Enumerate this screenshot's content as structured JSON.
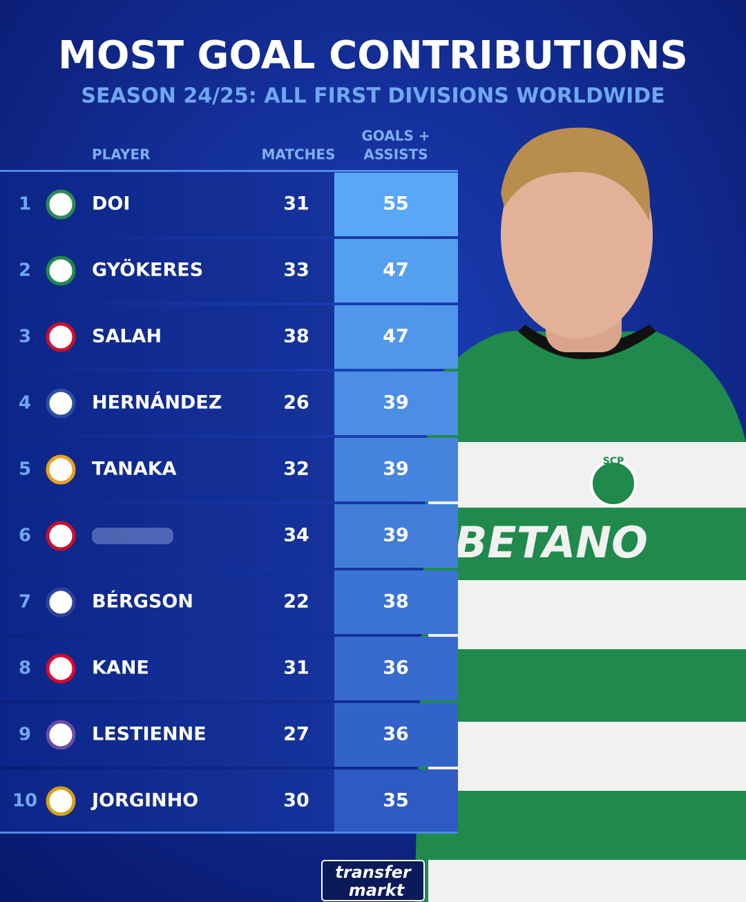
{
  "header": {
    "title": "MOST GOAL CONTRIBUTIONS",
    "subtitle": "SEASON 24/25: ALL FIRST DIVISIONS WORLDWIDE"
  },
  "columns": {
    "player": "PLAYER",
    "matches": "MATCHES",
    "goals_assists": [
      "GOALS +",
      "ASSISTS"
    ]
  },
  "table": {
    "rows": [
      {
        "rank": "1",
        "player": "DOI",
        "matches": "31",
        "goals_assists": "55"
      },
      {
        "rank": "2",
        "player": "GYÖKERES",
        "matches": "33",
        "goals_assists": "47"
      },
      {
        "rank": "3",
        "player": "SALAH",
        "matches": "38",
        "goals_assists": "47"
      },
      {
        "rank": "4",
        "player": "HERNÁNDEZ",
        "matches": "26",
        "goals_assists": "39"
      },
      {
        "rank": "5",
        "player": "TANAKA",
        "matches": "32",
        "goals_assists": "39"
      },
      {
        "rank": "6",
        "player": null,
        "matches": "34",
        "goals_assists": "39"
      },
      {
        "rank": "7",
        "player": "BÉRGSON",
        "matches": "22",
        "goals_assists": "38"
      },
      {
        "rank": "8",
        "player": "KANE",
        "matches": "31",
        "goals_assists": "36"
      },
      {
        "rank": "9",
        "player": "LESTIENNE",
        "matches": "27",
        "goals_assists": "36"
      },
      {
        "rank": "10",
        "player": "JORGINHO",
        "matches": "30",
        "goals_assists": "35"
      }
    ]
  },
  "photo": {
    "sponsor": "BETANO",
    "crest": "SCP"
  },
  "brand": {
    "line1": "transfer",
    "line2": "markt"
  }
}
